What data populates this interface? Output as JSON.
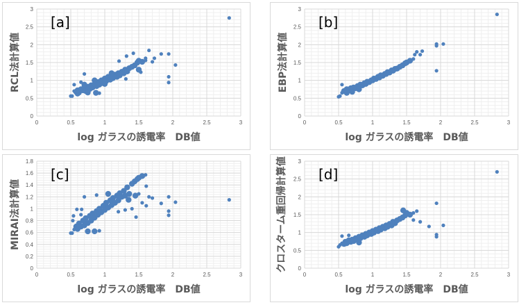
{
  "chart_data": [
    {
      "type": "scatter",
      "panel": "[a]",
      "xlabel": "log ガラスの誘電率　DB値",
      "ylabel": "RCL法計算値",
      "xlim": [
        0,
        3
      ],
      "ylim": [
        0,
        3
      ],
      "xticks": [
        "0",
        "0.5",
        "1",
        "1.5",
        "2",
        "2.5",
        "3"
      ],
      "yticks": [
        "0",
        "0.5",
        "1",
        "1.5",
        "2",
        "2.5",
        "3"
      ],
      "xstep": 0.5,
      "ystep": 0.5,
      "color": "#4f81bd",
      "points": [
        [
          0.5,
          0.56
        ],
        [
          0.52,
          0.56
        ],
        [
          0.55,
          0.7
        ],
        [
          0.58,
          0.68
        ],
        [
          0.6,
          0.72
        ],
        [
          0.62,
          0.66
        ],
        [
          0.65,
          0.75
        ],
        [
          0.68,
          0.72
        ],
        [
          0.7,
          0.8
        ],
        [
          0.72,
          0.7
        ],
        [
          0.75,
          0.82
        ],
        [
          0.78,
          0.76
        ],
        [
          0.8,
          0.86
        ],
        [
          0.82,
          0.8
        ],
        [
          0.85,
          0.9
        ],
        [
          0.88,
          0.84
        ],
        [
          0.9,
          0.95
        ],
        [
          0.92,
          0.88
        ],
        [
          0.95,
          1.0
        ],
        [
          0.98,
          0.92
        ],
        [
          1.0,
          1.05
        ],
        [
          1.02,
          0.98
        ],
        [
          1.05,
          1.1
        ],
        [
          1.08,
          1.02
        ],
        [
          1.1,
          1.12
        ],
        [
          1.12,
          1.06
        ],
        [
          1.15,
          1.16
        ],
        [
          1.18,
          1.1
        ],
        [
          1.2,
          1.2
        ],
        [
          1.22,
          1.14
        ],
        [
          1.25,
          1.24
        ],
        [
          1.28,
          1.2
        ],
        [
          1.3,
          1.3
        ],
        [
          1.33,
          1.25
        ],
        [
          1.36,
          1.34
        ],
        [
          1.4,
          1.38
        ],
        [
          1.44,
          1.42
        ],
        [
          1.48,
          1.5
        ],
        [
          1.5,
          1.55
        ],
        [
          1.55,
          1.52
        ],
        [
          1.6,
          1.56
        ],
        [
          0.65,
          0.95
        ],
        [
          0.7,
          0.88
        ],
        [
          0.6,
          0.63
        ],
        [
          0.75,
          0.66
        ],
        [
          0.85,
          1.0
        ],
        [
          1.1,
          1.2
        ],
        [
          1.0,
          0.9
        ],
        [
          2.83,
          2.75
        ],
        [
          1.65,
          1.84
        ],
        [
          1.42,
          1.76
        ],
        [
          1.32,
          1.68
        ],
        [
          1.83,
          1.74
        ],
        [
          1.94,
          1.74
        ],
        [
          1.73,
          1.62
        ],
        [
          1.7,
          1.52
        ],
        [
          2.04,
          1.43
        ],
        [
          1.94,
          1.1
        ],
        [
          1.94,
          0.94
        ],
        [
          0.7,
          1.18
        ],
        [
          0.55,
          0.88
        ],
        [
          1.21,
          1.54
        ],
        [
          1.31,
          1.04
        ],
        [
          0.92,
          0.64
        ],
        [
          0.87,
          0.65
        ],
        [
          1.53,
          1.23
        ],
        [
          1.6,
          1.62
        ],
        [
          1.5,
          1.3
        ]
      ]
    },
    {
      "type": "scatter",
      "panel": "[b]",
      "xlabel": "log ガラスの誘電率　DB値",
      "ylabel": "EBP法計算値",
      "xlim": [
        0,
        3
      ],
      "ylim": [
        0,
        3
      ],
      "xticks": [
        "0",
        "0.5",
        "1",
        "1.5",
        "2",
        "2.5",
        "3"
      ],
      "yticks": [
        "0",
        "0.5",
        "1",
        "1.5",
        "2",
        "2.5",
        "3"
      ],
      "xstep": 0.5,
      "ystep": 0.5,
      "color": "#4f81bd",
      "points": [
        [
          0.5,
          0.54
        ],
        [
          0.52,
          0.56
        ],
        [
          0.55,
          0.65
        ],
        [
          0.58,
          0.7
        ],
        [
          0.6,
          0.7
        ],
        [
          0.62,
          0.75
        ],
        [
          0.65,
          0.72
        ],
        [
          0.68,
          0.78
        ],
        [
          0.7,
          0.75
        ],
        [
          0.72,
          0.8
        ],
        [
          0.75,
          0.78
        ],
        [
          0.78,
          0.84
        ],
        [
          0.8,
          0.82
        ],
        [
          0.82,
          0.88
        ],
        [
          0.85,
          0.86
        ],
        [
          0.88,
          0.92
        ],
        [
          0.9,
          0.9
        ],
        [
          0.92,
          0.96
        ],
        [
          0.95,
          0.95
        ],
        [
          0.98,
          1.0
        ],
        [
          1.0,
          1.0
        ],
        [
          1.02,
          1.05
        ],
        [
          1.05,
          1.04
        ],
        [
          1.08,
          1.1
        ],
        [
          1.1,
          1.08
        ],
        [
          1.12,
          1.14
        ],
        [
          1.15,
          1.13
        ],
        [
          1.18,
          1.18
        ],
        [
          1.2,
          1.18
        ],
        [
          1.22,
          1.23
        ],
        [
          1.25,
          1.22
        ],
        [
          1.28,
          1.28
        ],
        [
          1.3,
          1.27
        ],
        [
          1.33,
          1.32
        ],
        [
          1.36,
          1.33
        ],
        [
          1.4,
          1.38
        ],
        [
          1.44,
          1.42
        ],
        [
          1.48,
          1.48
        ],
        [
          1.5,
          1.5
        ],
        [
          1.55,
          1.55
        ],
        [
          1.6,
          1.6
        ],
        [
          0.62,
          0.65
        ],
        [
          0.7,
          0.68
        ],
        [
          0.8,
          0.75
        ],
        [
          2.83,
          2.85
        ],
        [
          1.94,
          2.02
        ],
        [
          1.94,
          1.97
        ],
        [
          2.04,
          2.02
        ],
        [
          1.94,
          1.27
        ],
        [
          1.65,
          1.8
        ],
        [
          1.73,
          1.82
        ],
        [
          0.55,
          0.88
        ],
        [
          1.7,
          1.72
        ],
        [
          1.62,
          1.72
        ]
      ]
    },
    {
      "type": "scatter",
      "panel": "[c]",
      "xlabel": "log ガラスの誘電率　DB値",
      "ylabel": "MIRAI法計算値",
      "xlim": [
        0,
        3
      ],
      "ylim": [
        0,
        1.8
      ],
      "xticks": [
        "0",
        "0.5",
        "1",
        "1.5",
        "2",
        "2.5",
        "3"
      ],
      "yticks": [
        "0",
        "0.2",
        "0.4",
        "0.6",
        "0.8",
        "1",
        "1.2",
        "1.4",
        "1.6",
        "1.8"
      ],
      "xstep": 0.5,
      "ystep": 0.2,
      "color": "#4f81bd",
      "points": [
        [
          0.5,
          0.59
        ],
        [
          0.52,
          0.59
        ],
        [
          0.55,
          0.65
        ],
        [
          0.58,
          0.7
        ],
        [
          0.6,
          0.66
        ],
        [
          0.62,
          0.75
        ],
        [
          0.65,
          0.7
        ],
        [
          0.68,
          0.8
        ],
        [
          0.7,
          0.72
        ],
        [
          0.72,
          0.84
        ],
        [
          0.75,
          0.76
        ],
        [
          0.78,
          0.88
        ],
        [
          0.8,
          0.8
        ],
        [
          0.82,
          0.92
        ],
        [
          0.85,
          0.85
        ],
        [
          0.88,
          0.96
        ],
        [
          0.9,
          0.9
        ],
        [
          0.92,
          1.0
        ],
        [
          0.95,
          0.94
        ],
        [
          0.98,
          1.05
        ],
        [
          1.0,
          0.98
        ],
        [
          1.02,
          1.1
        ],
        [
          1.05,
          1.02
        ],
        [
          1.08,
          1.14
        ],
        [
          1.1,
          1.06
        ],
        [
          1.12,
          1.18
        ],
        [
          1.15,
          1.1
        ],
        [
          1.18,
          1.22
        ],
        [
          1.2,
          1.14
        ],
        [
          1.22,
          1.26
        ],
        [
          1.25,
          1.2
        ],
        [
          1.28,
          1.3
        ],
        [
          1.3,
          1.22
        ],
        [
          1.33,
          1.36
        ],
        [
          1.36,
          1.25
        ],
        [
          1.4,
          1.42
        ],
        [
          1.44,
          1.46
        ],
        [
          1.48,
          1.5
        ],
        [
          1.5,
          1.52
        ],
        [
          1.55,
          1.55
        ],
        [
          1.6,
          1.57
        ],
        [
          1.45,
          1.22
        ],
        [
          1.5,
          1.25
        ],
        [
          1.35,
          1.15
        ],
        [
          1.4,
          1.0
        ],
        [
          1.2,
          0.95
        ],
        [
          0.65,
          0.9
        ],
        [
          0.75,
          0.62
        ],
        [
          0.85,
          0.62
        ],
        [
          1.05,
          1.25
        ],
        [
          0.88,
          1.23
        ],
        [
          2.83,
          1.15
        ],
        [
          1.94,
          1.2
        ],
        [
          1.94,
          0.96
        ],
        [
          1.94,
          0.89
        ],
        [
          2.04,
          1.11
        ],
        [
          1.83,
          1.09
        ],
        [
          1.7,
          1.18
        ],
        [
          1.65,
          1.2
        ],
        [
          1.61,
          1.38
        ],
        [
          1.61,
          1.05
        ],
        [
          1.46,
          0.86
        ],
        [
          0.7,
          1.2
        ],
        [
          0.59,
          0.99
        ],
        [
          0.66,
          0.99
        ],
        [
          0.54,
          0.88
        ],
        [
          0.92,
          0.63
        ],
        [
          1.55,
          1.1
        ],
        [
          1.3,
          0.98
        ],
        [
          0.53,
          0.8
        ]
      ]
    },
    {
      "type": "scatter",
      "panel": "[d]",
      "xlabel": "log ガラスの誘電率　DB値",
      "ylabel": "クロスターム重回帰計算値",
      "xlim": [
        0,
        3
      ],
      "ylim": [
        0,
        3
      ],
      "xticks": [
        "0",
        "0.5",
        "1",
        "1.5",
        "2",
        "2.5",
        "3"
      ],
      "yticks": [
        "0",
        "0.5",
        "1",
        "1.5",
        "2",
        "2.5",
        "3"
      ],
      "xstep": 0.5,
      "ystep": 0.5,
      "color": "#4f81bd",
      "points": [
        [
          0.5,
          0.6
        ],
        [
          0.52,
          0.65
        ],
        [
          0.55,
          0.7
        ],
        [
          0.58,
          0.68
        ],
        [
          0.6,
          0.74
        ],
        [
          0.62,
          0.7
        ],
        [
          0.65,
          0.78
        ],
        [
          0.68,
          0.74
        ],
        [
          0.7,
          0.8
        ],
        [
          0.72,
          0.76
        ],
        [
          0.75,
          0.84
        ],
        [
          0.78,
          0.8
        ],
        [
          0.8,
          0.88
        ],
        [
          0.82,
          0.84
        ],
        [
          0.85,
          0.92
        ],
        [
          0.88,
          0.88
        ],
        [
          0.9,
          0.96
        ],
        [
          0.92,
          0.92
        ],
        [
          0.95,
          1.0
        ],
        [
          0.98,
          0.96
        ],
        [
          1.0,
          1.04
        ],
        [
          1.02,
          1.0
        ],
        [
          1.05,
          1.08
        ],
        [
          1.08,
          1.04
        ],
        [
          1.1,
          1.12
        ],
        [
          1.12,
          1.08
        ],
        [
          1.15,
          1.16
        ],
        [
          1.18,
          1.12
        ],
        [
          1.2,
          1.2
        ],
        [
          1.22,
          1.16
        ],
        [
          1.25,
          1.24
        ],
        [
          1.28,
          1.2
        ],
        [
          1.3,
          1.3
        ],
        [
          1.33,
          1.26
        ],
        [
          1.36,
          1.34
        ],
        [
          1.4,
          1.38
        ],
        [
          1.44,
          1.42
        ],
        [
          1.48,
          1.48
        ],
        [
          1.5,
          1.55
        ],
        [
          1.55,
          1.5
        ],
        [
          1.6,
          1.55
        ],
        [
          0.65,
          0.92
        ],
        [
          0.8,
          0.72
        ],
        [
          2.83,
          2.7
        ],
        [
          1.94,
          1.82
        ],
        [
          1.94,
          0.94
        ],
        [
          1.94,
          0.88
        ],
        [
          2.04,
          1.2
        ],
        [
          1.83,
          1.17
        ],
        [
          1.65,
          1.6
        ],
        [
          1.7,
          1.3
        ],
        [
          0.55,
          0.9
        ],
        [
          1.45,
          1.62
        ],
        [
          1.6,
          1.35
        ]
      ]
    }
  ]
}
